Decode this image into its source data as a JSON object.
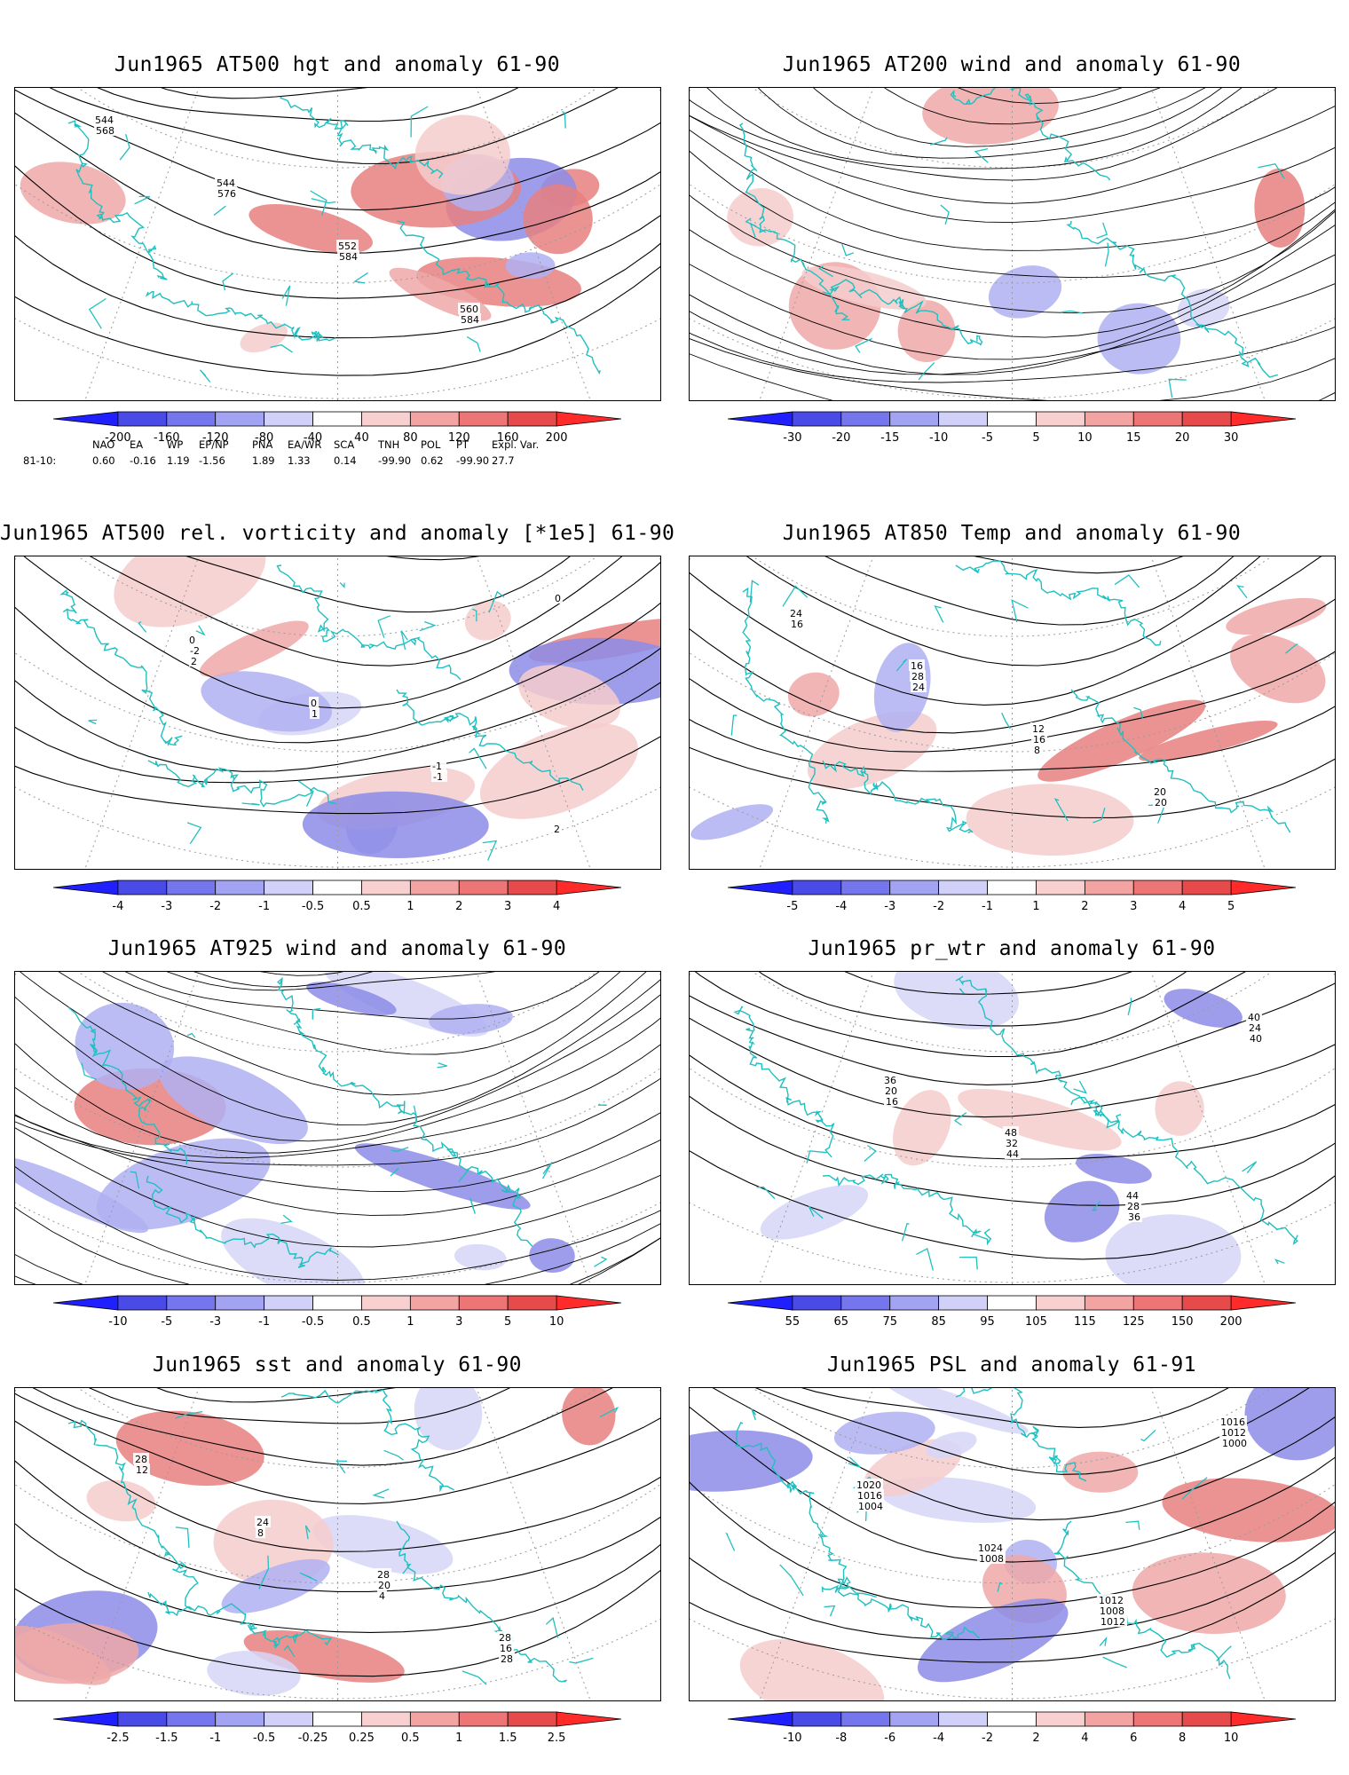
{
  "colors": {
    "coast": "#20c0c0",
    "grid": "#9a9a9a",
    "contour": "#000000"
  },
  "panels": [
    {
      "id": "p1",
      "title": "Jun1965 AT500 hgt and anomaly 61-90",
      "field": "contour",
      "labels": [
        "544",
        "544",
        "552",
        "560",
        "568",
        "576",
        "584",
        "584"
      ],
      "colorbar": {
        "labels": [
          "-200",
          "-160",
          "-120",
          "-80",
          "-40",
          "40",
          "80",
          "120",
          "160",
          "200"
        ],
        "colors": [
          "#1f1fff",
          "#4a4ae6",
          "#7575ee",
          "#a3a3f4",
          "#d0d0f8",
          "#ffffff",
          "#f8d0d0",
          "#f4a3a3",
          "#ee7575",
          "#e64a4a",
          "#ff2a2a"
        ]
      }
    },
    {
      "id": "p2",
      "title": "Jun1965 AT200 wind and anomaly 61-90",
      "field": "stream",
      "labels": [],
      "colorbar": {
        "labels": [
          "-30",
          "-20",
          "-15",
          "-10",
          "-5",
          "5",
          "10",
          "15",
          "20",
          "30"
        ],
        "colors": [
          "#1f1fff",
          "#4a4ae6",
          "#7575ee",
          "#a3a3f4",
          "#d0d0f8",
          "#ffffff",
          "#f8d0d0",
          "#f4a3a3",
          "#ee7575",
          "#e64a4a",
          "#ff2a2a"
        ]
      }
    },
    {
      "id": "p3",
      "title": "Jun1965 AT500 rel. vorticity and anomaly [*1e5] 61-90",
      "field": "contour",
      "labels": [
        "0",
        "0",
        "-1",
        "2",
        "-2",
        "1",
        "-1",
        "0",
        "2"
      ],
      "colorbar": {
        "labels": [
          "-4",
          "-3",
          "-2",
          "-1",
          "-0.5",
          "0.5",
          "1",
          "2",
          "3",
          "4"
        ],
        "colors": [
          "#1f1fff",
          "#4a4ae6",
          "#7575ee",
          "#a3a3f4",
          "#d0d0f8",
          "#ffffff",
          "#f8d0d0",
          "#f4a3a3",
          "#ee7575",
          "#e64a4a",
          "#ff2a2a"
        ]
      }
    },
    {
      "id": "p4",
      "title": "Jun1965 AT850 Temp and anomaly 61-90",
      "field": "contour",
      "labels": [
        "16",
        "12",
        "20",
        "24",
        "28",
        "16",
        "20",
        "16",
        "24",
        "8"
      ],
      "colorbar": {
        "labels": [
          "-5",
          "-4",
          "-3",
          "-2",
          "-1",
          "1",
          "2",
          "3",
          "4",
          "5"
        ],
        "colors": [
          "#1f1fff",
          "#4a4ae6",
          "#7575ee",
          "#a3a3f4",
          "#d0d0f8",
          "#ffffff",
          "#f8d0d0",
          "#f4a3a3",
          "#ee7575",
          "#e64a4a",
          "#ff2a2a"
        ]
      }
    },
    {
      "id": "p5",
      "title": "Jun1965 AT925 wind and anomaly 61-90",
      "field": "stream",
      "labels": [],
      "colorbar": {
        "labels": [
          "-10",
          "-5",
          "-3",
          "-1",
          "-0.5",
          "0.5",
          "1",
          "3",
          "5",
          "10"
        ],
        "colors": [
          "#1f1fff",
          "#4a4ae6",
          "#7575ee",
          "#a3a3f4",
          "#d0d0f8",
          "#ffffff",
          "#f8d0d0",
          "#f4a3a3",
          "#ee7575",
          "#e64a4a",
          "#ff2a2a"
        ]
      }
    },
    {
      "id": "p6",
      "title": "Jun1965 pr_wtr and anomaly 61-90",
      "field": "contour",
      "labels": [
        "48",
        "44",
        "40",
        "36",
        "32",
        "28",
        "24",
        "20",
        "44",
        "36",
        "40",
        "16"
      ],
      "colorbar": {
        "labels": [
          "55",
          "65",
          "75",
          "85",
          "95",
          "105",
          "115",
          "125",
          "150",
          "200"
        ],
        "colors": [
          "#1f1fff",
          "#4a4ae6",
          "#7575ee",
          "#a3a3f4",
          "#d0d0f8",
          "#ffffff",
          "#f8d0d0",
          "#f4a3a3",
          "#ee7575",
          "#e64a4a",
          "#ff2a2a"
        ]
      }
    },
    {
      "id": "p7",
      "title": "Jun1965 sst and anomaly 61-90",
      "field": "contour",
      "labels": [
        "28",
        "28",
        "28",
        "24",
        "20",
        "16",
        "12",
        "8",
        "4",
        "28"
      ],
      "colorbar": {
        "labels": [
          "-2.5",
          "-1.5",
          "-1",
          "-0.5",
          "-0.25",
          "0.25",
          "0.5",
          "1",
          "1.5",
          "2.5"
        ],
        "colors": [
          "#1f1fff",
          "#4a4ae6",
          "#7575ee",
          "#a3a3f4",
          "#d0d0f8",
          "#ffffff",
          "#f8d0d0",
          "#f4a3a3",
          "#ee7575",
          "#e64a4a",
          "#ff2a2a"
        ]
      }
    },
    {
      "id": "p8",
      "title": "Jun1965 PSL and anomaly 61-91",
      "field": "contour",
      "labels": [
        "1012",
        "1016",
        "1020",
        "1024",
        "1008",
        "1012",
        "1016",
        "1008",
        "1012",
        "1000",
        "1004"
      ],
      "colorbar": {
        "labels": [
          "-10",
          "-8",
          "-6",
          "-4",
          "-2",
          "2",
          "4",
          "6",
          "8",
          "10"
        ],
        "colors": [
          "#1f1fff",
          "#4a4ae6",
          "#7575ee",
          "#a3a3f4",
          "#d0d0f8",
          "#ffffff",
          "#f8d0d0",
          "#f4a3a3",
          "#ee7575",
          "#e64a4a",
          "#ff2a2a"
        ]
      }
    }
  ],
  "indices": {
    "headers": [
      "NAO",
      "EA",
      "WP",
      "EP/NP",
      "PNA",
      "EA/WR",
      "SCA",
      "TNH",
      "POL",
      "PT",
      "Expl. Var."
    ],
    "row_label": "81-10:",
    "values": [
      "0.60",
      "-0.16",
      "1.19",
      "-1.56",
      "1.89",
      "1.33",
      "0.14",
      "-99.90",
      "0.62",
      "-99.90",
      "27.7"
    ]
  }
}
